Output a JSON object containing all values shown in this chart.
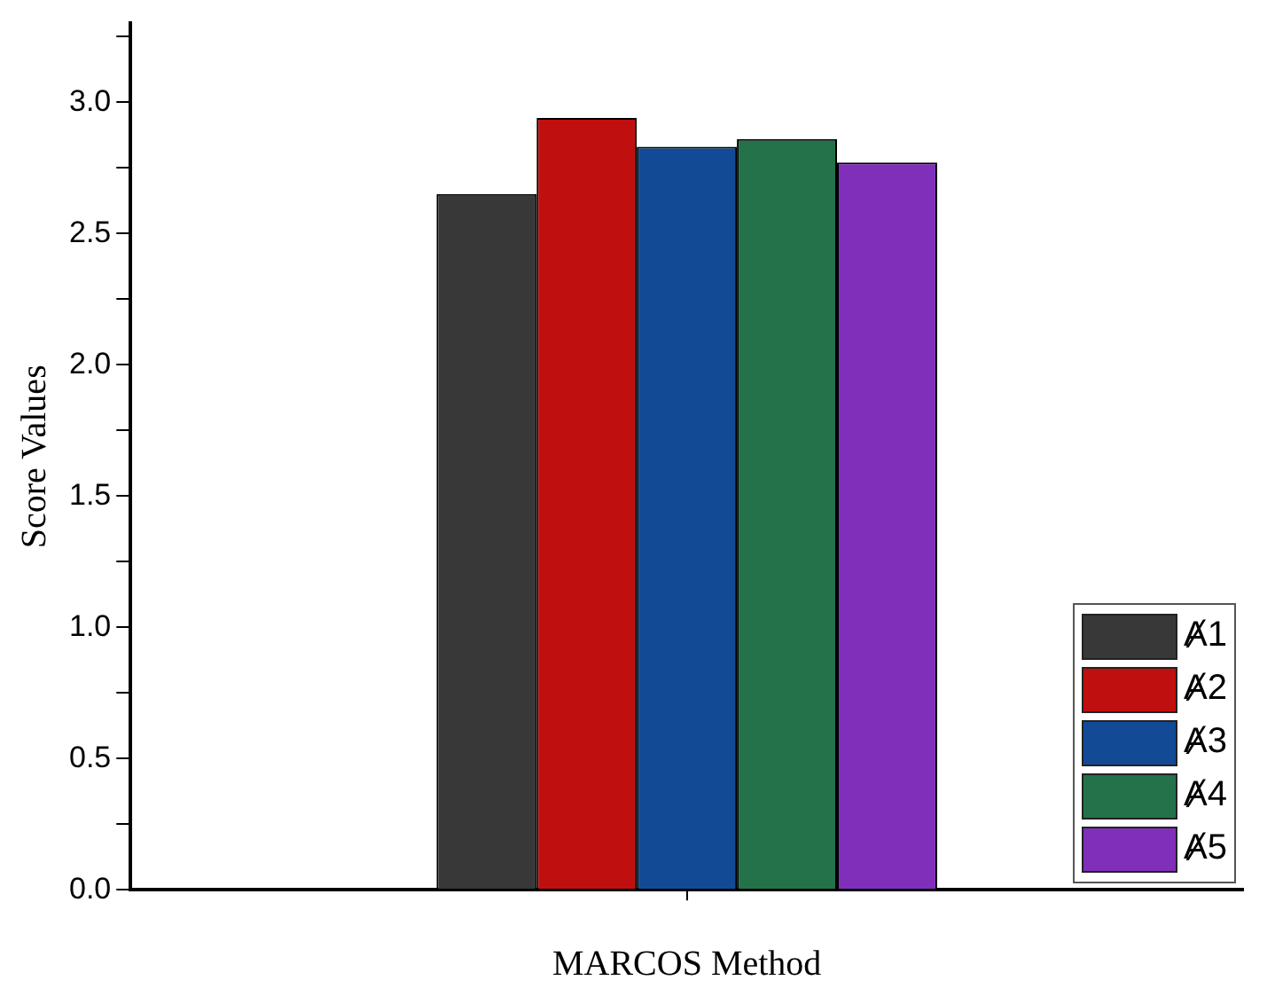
{
  "chart_data": {
    "type": "bar",
    "xlabel": "MARCOS Method",
    "ylabel": "Score Values",
    "categories": [
      null
    ],
    "series": [
      {
        "name": "Ⱥ1",
        "color": "#383838",
        "values": [
          2.65
        ]
      },
      {
        "name": "Ⱥ2",
        "color": "#c00f0f",
        "values": [
          2.94
        ]
      },
      {
        "name": "Ⱥ3",
        "color": "#124a96",
        "values": [
          2.83
        ]
      },
      {
        "name": "Ⱥ4",
        "color": "#23724a",
        "values": [
          2.86
        ]
      },
      {
        "name": "Ⱥ5",
        "color": "#7f2fba",
        "values": [
          2.77
        ]
      }
    ],
    "ylim": [
      0,
      3.3
    ],
    "yticks": [
      {
        "value": 0,
        "label": "0.0"
      },
      {
        "value": 0.25,
        "label": null
      },
      {
        "value": 0.5,
        "label": "0.5"
      },
      {
        "value": 0.75,
        "label": null
      },
      {
        "value": 1,
        "label": "1.0"
      },
      {
        "value": 1.25,
        "label": null
      },
      {
        "value": 1.5,
        "label": "1.5"
      },
      {
        "value": 1.75,
        "label": null
      },
      {
        "value": 2,
        "label": "2.0"
      },
      {
        "value": 2.25,
        "label": null
      },
      {
        "value": 2.5,
        "label": "2.5"
      },
      {
        "value": 2.75,
        "label": null
      },
      {
        "value": 3,
        "label": "3.0"
      },
      {
        "value": 3.25,
        "label": null
      }
    ],
    "grid": false,
    "legend": "bottom right"
  }
}
